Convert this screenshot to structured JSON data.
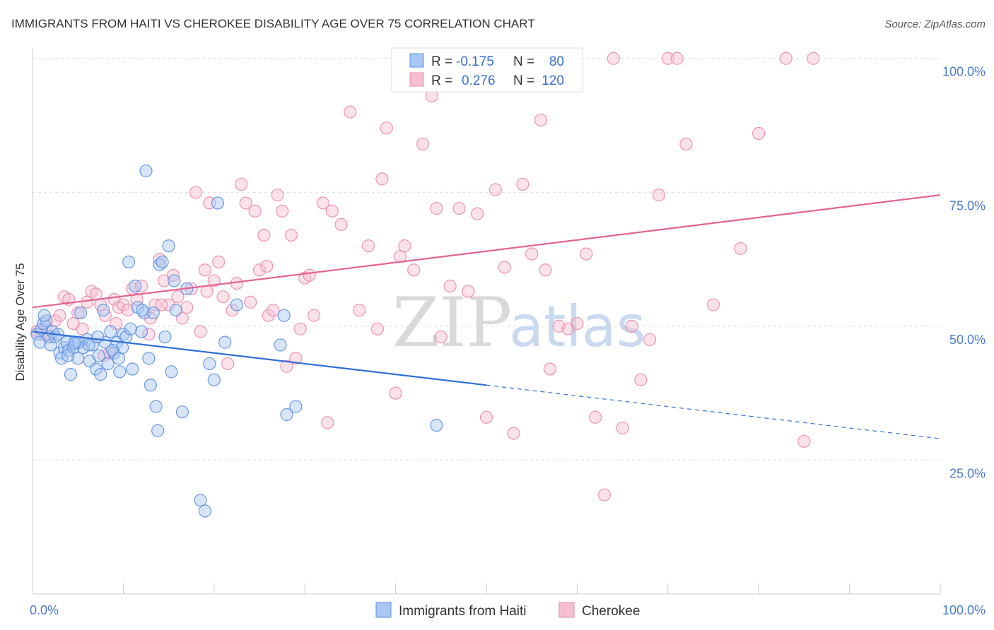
{
  "chart_data": {
    "type": "scatter",
    "title": "IMMIGRANTS FROM HAITI VS CHEROKEE DISABILITY AGE OVER 75 CORRELATION CHART",
    "source": "Source: ZipAtlas.com",
    "ylabel": "Disability Age Over 75",
    "xlabel": "",
    "xlim": [
      0,
      100
    ],
    "ylim": [
      0,
      103
    ],
    "x_tick_labels": {
      "left": "0.0%",
      "right": "100.0%"
    },
    "y_ticks": [
      {
        "value": 100,
        "label": "100.0%"
      },
      {
        "value": 75,
        "label": "75.0%"
      },
      {
        "value": 50,
        "label": "50.0%"
      },
      {
        "value": 25,
        "label": "25.0%"
      }
    ],
    "watermark": {
      "zip": "ZIP",
      "atlas": "atlas"
    },
    "legend": {
      "r_label": "R =",
      "n_label": "N =",
      "rows": [
        {
          "r": "-0.175",
          "n": "80"
        },
        {
          "r": "0.276",
          "n": "120"
        }
      ]
    },
    "series": [
      {
        "name": "Immigrants from Haiti",
        "color": "#5b8fe0",
        "fill": "#a9c6f2",
        "line_color": "#2f6fd6",
        "trend": {
          "x0": 0,
          "y0": 49,
          "x1": 50,
          "y1": 39,
          "solid_until": 50,
          "dashed_to": 100,
          "y_end": 29
        },
        "points": [
          [
            0.5,
            48.5
          ],
          [
            0.8,
            47
          ],
          [
            1,
            49.5
          ],
          [
            1.2,
            50.5
          ],
          [
            1.5,
            51
          ],
          [
            1.8,
            48
          ],
          [
            2,
            46.5
          ],
          [
            2.2,
            49
          ],
          [
            2.5,
            48
          ],
          [
            3,
            45
          ],
          [
            3.2,
            44
          ],
          [
            3.5,
            46
          ],
          [
            3.8,
            47
          ],
          [
            4,
            45.5
          ],
          [
            4.2,
            41
          ],
          [
            4.5,
            46
          ],
          [
            4.8,
            47
          ],
          [
            5,
            44
          ],
          [
            5.3,
            52.5
          ],
          [
            5.6,
            46
          ],
          [
            6,
            47.5
          ],
          [
            6.3,
            43.5
          ],
          [
            6.6,
            46.5
          ],
          [
            7,
            42
          ],
          [
            7.3,
            44.5
          ],
          [
            7.5,
            41
          ],
          [
            7.8,
            53
          ],
          [
            8,
            47
          ],
          [
            8.3,
            43
          ],
          [
            8.6,
            49
          ],
          [
            9,
            45
          ],
          [
            9.3,
            47
          ],
          [
            9.6,
            41.5
          ],
          [
            9.9,
            46
          ],
          [
            10,
            48.5
          ],
          [
            10.3,
            48
          ],
          [
            10.6,
            62
          ],
          [
            11,
            42
          ],
          [
            11.3,
            57.5
          ],
          [
            11.6,
            53.5
          ],
          [
            12,
            49
          ],
          [
            12.3,
            52.5
          ],
          [
            12.5,
            79
          ],
          [
            12.8,
            44
          ],
          [
            13,
            39
          ],
          [
            13.3,
            52.5
          ],
          [
            13.6,
            35
          ],
          [
            13.8,
            30.5
          ],
          [
            14,
            61.5
          ],
          [
            14.3,
            62
          ],
          [
            14.6,
            48
          ],
          [
            15,
            65
          ],
          [
            15.3,
            41.5
          ],
          [
            15.6,
            58.5
          ],
          [
            16.5,
            34
          ],
          [
            17,
            57
          ],
          [
            18.5,
            17.5
          ],
          [
            19,
            15.5
          ],
          [
            19.5,
            43
          ],
          [
            20,
            40
          ],
          [
            20.4,
            73
          ],
          [
            21.2,
            47
          ],
          [
            22.5,
            54
          ],
          [
            27.3,
            46.5
          ],
          [
            27.7,
            52
          ],
          [
            28,
            33.5
          ],
          [
            29,
            35
          ],
          [
            44.5,
            31.5
          ],
          [
            1.3,
            52
          ],
          [
            2.8,
            48.5
          ],
          [
            3.9,
            44.5
          ],
          [
            5.1,
            47
          ],
          [
            6.2,
            46.5
          ],
          [
            7.2,
            48
          ],
          [
            8.8,
            45.5
          ],
          [
            10.8,
            49.5
          ],
          [
            12.1,
            53
          ],
          [
            15.8,
            53
          ],
          [
            9.5,
            44
          ],
          [
            4.6,
            46.8
          ]
        ]
      },
      {
        "name": "Cherokee",
        "color": "#e98aa8",
        "fill": "#f6bfd0",
        "line_color": "#e2648f",
        "trend": {
          "x0": 0,
          "y0": 53.5,
          "x1": 100,
          "y1": 74.5
        },
        "points": [
          [
            0.5,
            49
          ],
          [
            1,
            48.5
          ],
          [
            1.5,
            50
          ],
          [
            2,
            48
          ],
          [
            2.5,
            51
          ],
          [
            3,
            52
          ],
          [
            3.5,
            55.5
          ],
          [
            4,
            55
          ],
          [
            4.5,
            50.5
          ],
          [
            5,
            52.5
          ],
          [
            5.5,
            49.5
          ],
          [
            6,
            54.5
          ],
          [
            6.5,
            56.5
          ],
          [
            7,
            56
          ],
          [
            7.5,
            54
          ],
          [
            8,
            52
          ],
          [
            8.5,
            45
          ],
          [
            9,
            55
          ],
          [
            9.5,
            53.5
          ],
          [
            10,
            54
          ],
          [
            10.5,
            53
          ],
          [
            11,
            57
          ],
          [
            11.5,
            55
          ],
          [
            12,
            57.5
          ],
          [
            13,
            51.5
          ],
          [
            13.5,
            54
          ],
          [
            14,
            62.5
          ],
          [
            14.5,
            58.5
          ],
          [
            15,
            54
          ],
          [
            15.5,
            59.5
          ],
          [
            16,
            55.5
          ],
          [
            16.5,
            51.5
          ],
          [
            17,
            53.5
          ],
          [
            17.5,
            57
          ],
          [
            18,
            75
          ],
          [
            18.5,
            49
          ],
          [
            19,
            60.5
          ],
          [
            19.5,
            73
          ],
          [
            20,
            58.5
          ],
          [
            20.5,
            62
          ],
          [
            21,
            55.5
          ],
          [
            21.5,
            43
          ],
          [
            22,
            53
          ],
          [
            22.5,
            58
          ],
          [
            23,
            76.5
          ],
          [
            23.5,
            73
          ],
          [
            24,
            54.5
          ],
          [
            24.5,
            71.5
          ],
          [
            25,
            60.5
          ],
          [
            25.5,
            67
          ],
          [
            26,
            52
          ],
          [
            26.5,
            53
          ],
          [
            27,
            74.5
          ],
          [
            27.5,
            71.5
          ],
          [
            28,
            42.5
          ],
          [
            28.5,
            67
          ],
          [
            29,
            44
          ],
          [
            29.5,
            49.5
          ],
          [
            30,
            59
          ],
          [
            30.5,
            59.5
          ],
          [
            31,
            52
          ],
          [
            32,
            73
          ],
          [
            32.5,
            32
          ],
          [
            33,
            71.5
          ],
          [
            34,
            69
          ],
          [
            35,
            90
          ],
          [
            36,
            53
          ],
          [
            37,
            65
          ],
          [
            38,
            49.5
          ],
          [
            38.5,
            77.5
          ],
          [
            39,
            87
          ],
          [
            40,
            37.5
          ],
          [
            40.5,
            63
          ],
          [
            41,
            65
          ],
          [
            42,
            60.5
          ],
          [
            43,
            84
          ],
          [
            44,
            93
          ],
          [
            44.5,
            72
          ],
          [
            45,
            48
          ],
          [
            46,
            57.5
          ],
          [
            47,
            72
          ],
          [
            48,
            56.5
          ],
          [
            49,
            71
          ],
          [
            50,
            33
          ],
          [
            51,
            75.5
          ],
          [
            52,
            61
          ],
          [
            53,
            30
          ],
          [
            54,
            76.5
          ],
          [
            55,
            63.5
          ],
          [
            56,
            88.5
          ],
          [
            56.5,
            60.5
          ],
          [
            57,
            42
          ],
          [
            58,
            50
          ],
          [
            59,
            49.5
          ],
          [
            60,
            50.5
          ],
          [
            61,
            63.5
          ],
          [
            62,
            33
          ],
          [
            63,
            18.5
          ],
          [
            64,
            100
          ],
          [
            65,
            31
          ],
          [
            66,
            50
          ],
          [
            67,
            40
          ],
          [
            68,
            47.5
          ],
          [
            69,
            74.5
          ],
          [
            70,
            100
          ],
          [
            71,
            100
          ],
          [
            72,
            84
          ],
          [
            75,
            54
          ],
          [
            78,
            64.5
          ],
          [
            80,
            86
          ],
          [
            83,
            100
          ],
          [
            85,
            28.5
          ],
          [
            86,
            100
          ],
          [
            52.5,
            100
          ],
          [
            12.8,
            48.5
          ],
          [
            7.9,
            44.5
          ],
          [
            19.2,
            56.5
          ],
          [
            9.2,
            50.5
          ],
          [
            14.2,
            54
          ],
          [
            25.8,
            61.2
          ]
        ]
      }
    ]
  }
}
